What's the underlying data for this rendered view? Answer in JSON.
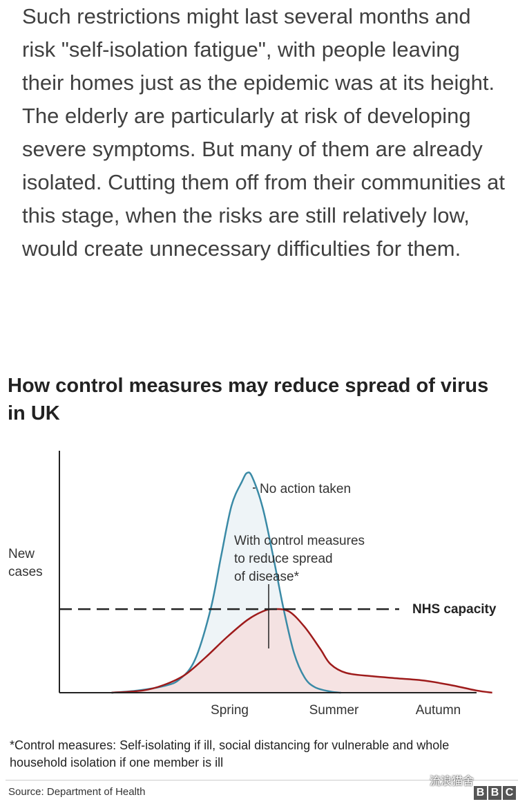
{
  "article": {
    "paragraph": "Such restrictions might last several months and risk \"self-isolation fatigue\", with people leaving their homes just as the epidemic was at its height. The elderly are particularly at risk of developing severe symptoms. But many of them are already isolated. Cutting them off from their communities at this stage, when the risks are still relatively low, would create unnecessary difficulties for them."
  },
  "chart_title": "How control measures may reduce spread of virus in UK",
  "chart_data": {
    "type": "area",
    "title": "How control measures may reduce spread of virus in UK",
    "ylabel": "New cases",
    "xlabel": "",
    "x_tick_labels": [
      {
        "label": "Spring",
        "x": 3
      },
      {
        "label": "Summer",
        "x": 5
      },
      {
        "label": "Autumn",
        "x": 7
      }
    ],
    "xlim": [
      0,
      8
    ],
    "ylim": [
      0,
      100
    ],
    "grid": false,
    "series": [
      {
        "name": "No action taken",
        "color": "#3a8aa6",
        "fill": "#eef4f7",
        "points": [
          [
            1.0,
            0
          ],
          [
            1.5,
            1
          ],
          [
            2.0,
            3
          ],
          [
            2.3,
            6
          ],
          [
            2.6,
            15
          ],
          [
            2.9,
            38
          ],
          [
            3.1,
            62
          ],
          [
            3.3,
            85
          ],
          [
            3.5,
            96
          ],
          [
            3.6,
            100
          ],
          [
            3.7,
            98
          ],
          [
            3.9,
            84
          ],
          [
            4.1,
            62
          ],
          [
            4.3,
            38
          ],
          [
            4.5,
            18
          ],
          [
            4.7,
            7
          ],
          [
            4.9,
            2.5
          ],
          [
            5.2,
            0.5
          ],
          [
            5.4,
            0
          ]
        ]
      },
      {
        "name": "With control measures to reduce spread of disease*",
        "color": "#9e1b1b",
        "fill": "#f5dede",
        "points": [
          [
            1.0,
            0
          ],
          [
            1.6,
            1
          ],
          [
            2.0,
            3.5
          ],
          [
            2.4,
            8
          ],
          [
            2.8,
            16
          ],
          [
            3.2,
            25
          ],
          [
            3.6,
            33
          ],
          [
            3.9,
            37
          ],
          [
            4.1,
            38
          ],
          [
            4.4,
            37
          ],
          [
            4.7,
            30
          ],
          [
            5.0,
            20
          ],
          [
            5.2,
            13
          ],
          [
            5.5,
            9
          ],
          [
            6.0,
            7.5
          ],
          [
            6.5,
            6.5
          ],
          [
            7.0,
            5.5
          ],
          [
            7.5,
            3.5
          ],
          [
            8.0,
            1
          ],
          [
            8.3,
            0
          ]
        ]
      }
    ],
    "reference_line": {
      "label": "NHS capacity",
      "y": 38,
      "style": "dashed"
    },
    "annotations": [
      {
        "text": "No action taken",
        "target": "No action taken"
      },
      {
        "text": "With control measures to reduce spread of disease*",
        "target": "With control measures to reduce spread of disease*"
      }
    ],
    "annotation_lines": [
      "With control measures",
      "to reduce spread",
      "of disease*"
    ]
  },
  "footnote": "*Control measures: Self-isolating if ill, social distancing for vulnerable and whole household isolation if one member is ill",
  "source": "Source: Department of Health",
  "watermark": "流浪猫舍",
  "bbc_logo": [
    "B",
    "B",
    "C"
  ]
}
